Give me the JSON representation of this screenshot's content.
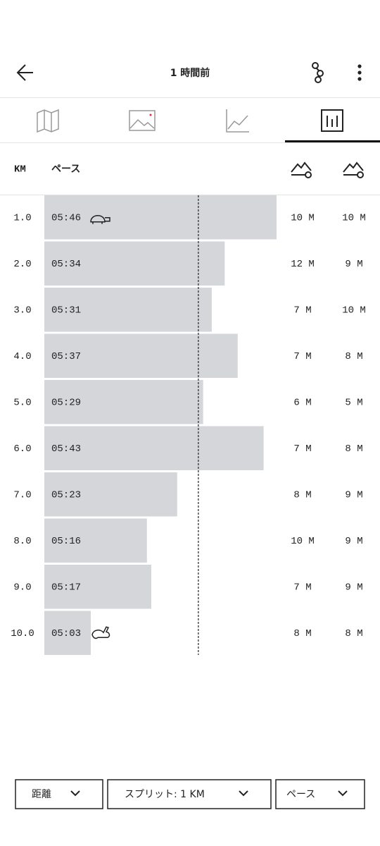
{
  "header": {
    "title": "1 時間前"
  },
  "table": {
    "headers": [
      "KM",
      "ペース"
    ],
    "rows": [
      [
        "1.0",
        "05:46",
        "10 M",
        "10 M"
      ],
      [
        "2.0",
        "05:34",
        "12 M",
        "9 M"
      ],
      [
        "3.0",
        "05:31",
        "7 M",
        "10 M"
      ],
      [
        "4.0",
        "05:37",
        "7 M",
        "8 M"
      ],
      [
        "5.0",
        "05:29",
        "6 M",
        "5 M"
      ],
      [
        "6.0",
        "05:43",
        "7 M",
        "8 M"
      ],
      [
        "7.0",
        "05:23",
        "8 M",
        "9 M"
      ],
      [
        "8.0",
        "05:16",
        "10 M",
        "9 M"
      ],
      [
        "9.0",
        "05:17",
        "7 M",
        "9 M"
      ],
      [
        "10.0",
        "05:03",
        "8 M",
        "8 M"
      ]
    ]
  },
  "footer": {
    "buttons": [
      "距離",
      "スプリット: 1 KM",
      "ペース"
    ]
  }
}
